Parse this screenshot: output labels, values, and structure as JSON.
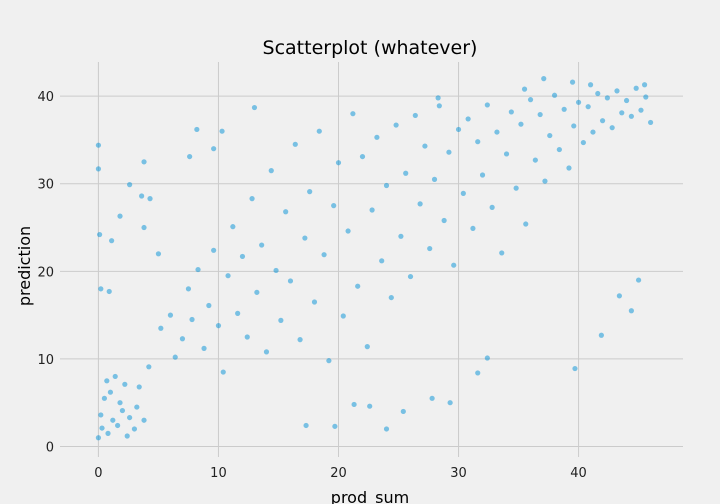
{
  "chart_data": {
    "type": "scatter",
    "title": "Scatterplot (whatever)",
    "xlabel": "prod_sum",
    "ylabel": "prediction",
    "xlim": [
      -3.2,
      48.7
    ],
    "ylim": [
      -1.2,
      43.9
    ],
    "xticks": [
      0,
      10,
      20,
      30,
      40
    ],
    "yticks": [
      0,
      10,
      20,
      30,
      40
    ],
    "xtick_labels": [
      "0",
      "10",
      "20",
      "30",
      "40"
    ],
    "ytick_labels": [
      "0",
      "10",
      "20",
      "30",
      "40"
    ],
    "grid": true,
    "point_color": "#008fd5",
    "point_opacity": 0.5,
    "background_color": "#f0f0f0",
    "grid_color": "#cbcbcb",
    "series": [
      {
        "points": [
          [
            0.0,
            1.0
          ],
          [
            0.3,
            2.1
          ],
          [
            0.8,
            1.5
          ],
          [
            1.2,
            3.0
          ],
          [
            1.6,
            2.4
          ],
          [
            2.0,
            4.1
          ],
          [
            2.4,
            1.2
          ],
          [
            0.5,
            5.5
          ],
          [
            1.0,
            6.2
          ],
          [
            1.8,
            5.0
          ],
          [
            2.6,
            3.3
          ],
          [
            3.0,
            2.0
          ],
          [
            3.4,
            6.8
          ],
          [
            0.2,
            3.6
          ],
          [
            0.7,
            7.5
          ],
          [
            1.4,
            8.0
          ],
          [
            2.2,
            7.1
          ],
          [
            3.2,
            4.5
          ],
          [
            3.8,
            3.0
          ],
          [
            4.2,
            9.1
          ],
          [
            0.0,
            34.4
          ],
          [
            0.0,
            31.7
          ],
          [
            0.1,
            24.2
          ],
          [
            0.2,
            18.0
          ],
          [
            0.9,
            17.7
          ],
          [
            1.1,
            23.5
          ],
          [
            1.8,
            26.3
          ],
          [
            2.6,
            29.9
          ],
          [
            3.6,
            28.6
          ],
          [
            4.3,
            28.3
          ],
          [
            3.8,
            32.5
          ],
          [
            3.8,
            25.0
          ],
          [
            5.0,
            22.0
          ],
          [
            5.2,
            13.5
          ],
          [
            6.0,
            15.0
          ],
          [
            6.4,
            10.2
          ],
          [
            7.0,
            12.3
          ],
          [
            7.5,
            18.0
          ],
          [
            7.8,
            14.5
          ],
          [
            8.3,
            20.2
          ],
          [
            8.8,
            11.2
          ],
          [
            9.2,
            16.1
          ],
          [
            9.6,
            22.4
          ],
          [
            10.0,
            13.8
          ],
          [
            10.4,
            8.5
          ],
          [
            10.8,
            19.5
          ],
          [
            11.2,
            25.1
          ],
          [
            11.6,
            15.2
          ],
          [
            12.0,
            21.7
          ],
          [
            12.4,
            12.5
          ],
          [
            12.8,
            28.3
          ],
          [
            13.2,
            17.6
          ],
          [
            13.6,
            23.0
          ],
          [
            14.0,
            10.8
          ],
          [
            14.4,
            31.5
          ],
          [
            14.8,
            20.1
          ],
          [
            15.2,
            14.4
          ],
          [
            15.6,
            26.8
          ],
          [
            16.0,
            18.9
          ],
          [
            16.4,
            34.5
          ],
          [
            16.8,
            12.2
          ],
          [
            17.2,
            23.8
          ],
          [
            17.6,
            29.1
          ],
          [
            18.0,
            16.5
          ],
          [
            18.4,
            36.0
          ],
          [
            18.8,
            21.9
          ],
          [
            19.2,
            9.8
          ],
          [
            19.6,
            27.5
          ],
          [
            20.0,
            32.4
          ],
          [
            20.4,
            14.9
          ],
          [
            20.8,
            24.6
          ],
          [
            21.2,
            38.0
          ],
          [
            21.6,
            18.3
          ],
          [
            22.0,
            33.1
          ],
          [
            22.4,
            11.4
          ],
          [
            22.8,
            27.0
          ],
          [
            23.2,
            35.3
          ],
          [
            23.6,
            21.2
          ],
          [
            24.0,
            29.8
          ],
          [
            24.4,
            17.0
          ],
          [
            24.8,
            36.7
          ],
          [
            25.2,
            24.0
          ],
          [
            25.6,
            31.2
          ],
          [
            26.0,
            19.4
          ],
          [
            26.4,
            37.8
          ],
          [
            26.8,
            27.7
          ],
          [
            27.2,
            34.3
          ],
          [
            27.6,
            22.6
          ],
          [
            28.0,
            30.5
          ],
          [
            28.4,
            38.9
          ],
          [
            28.8,
            25.8
          ],
          [
            29.2,
            33.6
          ],
          [
            29.6,
            20.7
          ],
          [
            30.0,
            36.2
          ],
          [
            30.4,
            28.9
          ],
          [
            30.8,
            37.4
          ],
          [
            31.2,
            24.9
          ],
          [
            31.6,
            34.8
          ],
          [
            32.0,
            31.0
          ],
          [
            32.4,
            39.0
          ],
          [
            32.8,
            27.3
          ],
          [
            33.2,
            35.9
          ],
          [
            33.6,
            22.1
          ],
          [
            34.0,
            33.4
          ],
          [
            34.4,
            38.2
          ],
          [
            34.8,
            29.5
          ],
          [
            35.2,
            36.8
          ],
          [
            35.6,
            25.4
          ],
          [
            36.0,
            39.6
          ],
          [
            36.4,
            32.7
          ],
          [
            36.8,
            37.9
          ],
          [
            37.2,
            30.3
          ],
          [
            37.6,
            35.5
          ],
          [
            38.0,
            40.1
          ],
          [
            38.4,
            33.9
          ],
          [
            38.8,
            38.5
          ],
          [
            39.2,
            31.8
          ],
          [
            39.6,
            36.6
          ],
          [
            40.0,
            39.3
          ],
          [
            40.4,
            34.7
          ],
          [
            40.8,
            38.8
          ],
          [
            41.2,
            35.9
          ],
          [
            41.6,
            40.3
          ],
          [
            42.0,
            37.2
          ],
          [
            42.4,
            39.8
          ],
          [
            42.8,
            36.4
          ],
          [
            43.2,
            40.6
          ],
          [
            43.6,
            38.1
          ],
          [
            44.0,
            39.5
          ],
          [
            44.4,
            37.7
          ],
          [
            44.8,
            40.9
          ],
          [
            45.2,
            38.4
          ],
          [
            45.6,
            39.9
          ],
          [
            46.0,
            37.0
          ],
          [
            39.7,
            8.9
          ],
          [
            41.9,
            12.7
          ],
          [
            44.4,
            15.5
          ],
          [
            45.0,
            19.0
          ],
          [
            43.4,
            17.2
          ],
          [
            32.4,
            10.1
          ],
          [
            31.6,
            8.4
          ],
          [
            27.8,
            5.5
          ],
          [
            29.3,
            5.0
          ],
          [
            25.4,
            4.0
          ],
          [
            24.0,
            2.0
          ],
          [
            19.7,
            2.3
          ],
          [
            17.3,
            2.4
          ],
          [
            21.3,
            4.8
          ],
          [
            22.6,
            4.6
          ],
          [
            13.0,
            38.7
          ],
          [
            10.3,
            36.0
          ],
          [
            8.2,
            36.2
          ],
          [
            7.6,
            33.1
          ],
          [
            9.6,
            34.0
          ],
          [
            28.3,
            39.8
          ],
          [
            35.5,
            40.8
          ],
          [
            37.1,
            42.0
          ],
          [
            39.5,
            41.6
          ],
          [
            41.0,
            41.3
          ],
          [
            45.5,
            41.3
          ]
        ]
      }
    ]
  }
}
